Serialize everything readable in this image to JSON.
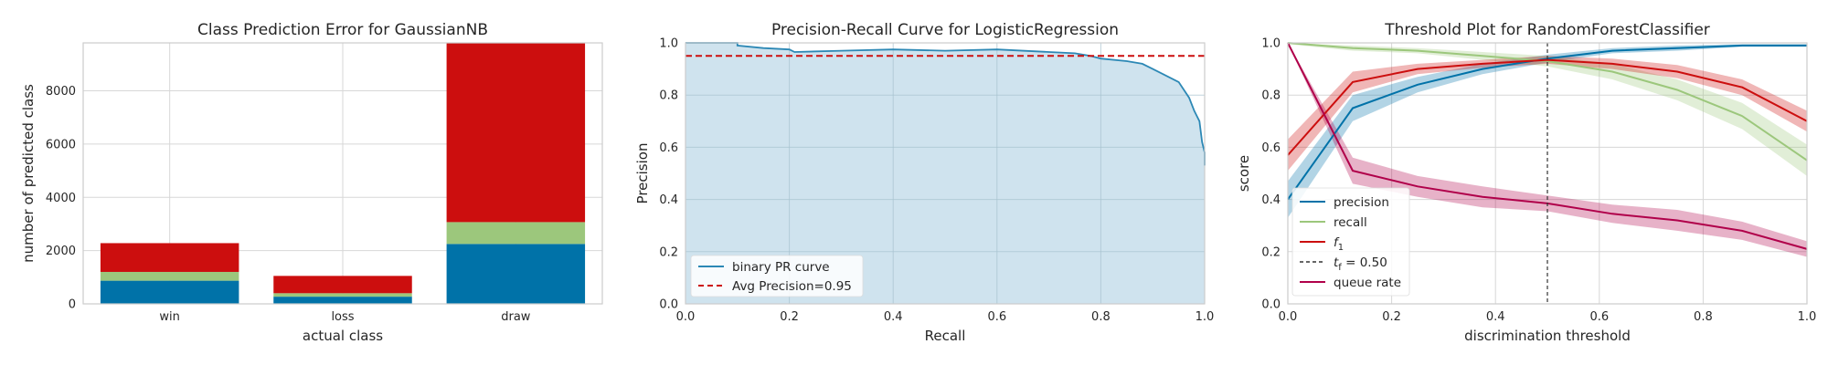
{
  "colors": {
    "blue": "#0072a8",
    "green": "#9cc77c",
    "red": "#cc0e0e",
    "crimson": "#b0004a",
    "pr_fill": "#cfe3ee",
    "pr_line": "#2c88b5",
    "grid": "#d7d7d7",
    "pr_grid": "#a7c2cf"
  },
  "chart_data": [
    {
      "type": "bar",
      "stacked": true,
      "title": "Class Prediction Error for GaussianNB",
      "xlabel": "actual class",
      "ylabel": "number of predicted class",
      "categories": [
        "win",
        "loss",
        "draw"
      ],
      "series": [
        {
          "color": "blue",
          "values": [
            870,
            270,
            2250
          ]
        },
        {
          "color": "green",
          "values": [
            330,
            130,
            820
          ]
        },
        {
          "color": "red",
          "values": [
            1080,
            650,
            6730
          ]
        }
      ],
      "ylim": [
        0,
        9800
      ],
      "yticks": [
        0,
        2000,
        4000,
        6000,
        8000
      ],
      "grid": true
    },
    {
      "type": "area",
      "title": "Precision-Recall Curve for LogisticRegression",
      "xlabel": "Recall",
      "ylabel": "Precision",
      "xlim": [
        0,
        1
      ],
      "ylim": [
        0,
        1
      ],
      "xticks": [
        "0.0",
        "0.2",
        "0.4",
        "0.6",
        "0.8",
        "1.0"
      ],
      "yticks": [
        "0.0",
        "0.2",
        "0.4",
        "0.6",
        "0.8",
        "1.0"
      ],
      "series": [
        {
          "name": "binary PR curve",
          "x": [
            0,
            0.1,
            0.1,
            0.15,
            0.2,
            0.21,
            0.3,
            0.4,
            0.5,
            0.6,
            0.7,
            0.75,
            0.78,
            0.8,
            0.85,
            0.88,
            0.9,
            0.92,
            0.95,
            0.96,
            0.97,
            0.98,
            0.99,
            0.995,
            1.0,
            1.0
          ],
          "y": [
            1.0,
            1.0,
            0.99,
            0.98,
            0.975,
            0.965,
            0.97,
            0.975,
            0.97,
            0.975,
            0.965,
            0.96,
            0.95,
            0.94,
            0.93,
            0.92,
            0.9,
            0.88,
            0.85,
            0.82,
            0.79,
            0.74,
            0.7,
            0.62,
            0.58,
            0.53
          ]
        }
      ],
      "reference_line": {
        "name": "Avg Precision=0.95",
        "y": 0.95
      },
      "legend": [
        "binary PR curve",
        "Avg Precision=0.95"
      ],
      "legend_position": "lower-left",
      "grid": true
    },
    {
      "type": "line",
      "title": "Threshold Plot for RandomForestClassifier",
      "xlabel": "discrimination threshold",
      "ylabel": "score",
      "xlim": [
        0,
        1
      ],
      "ylim": [
        0,
        1
      ],
      "xticks": [
        "0.0",
        "0.2",
        "0.4",
        "0.6",
        "0.8",
        "1.0"
      ],
      "yticks": [
        "0.0",
        "0.2",
        "0.4",
        "0.6",
        "0.8",
        "1.0"
      ],
      "x": [
        0,
        0.125,
        0.25,
        0.375,
        0.5,
        0.625,
        0.75,
        0.875,
        1.0
      ],
      "series": [
        {
          "name": "precision",
          "color": "blue",
          "values": [
            0.4,
            0.75,
            0.84,
            0.9,
            0.94,
            0.97,
            0.98,
            0.99,
            0.99
          ],
          "band": [
            0.07,
            0.05,
            0.03,
            0.02,
            0.015,
            0.01,
            0.01,
            0.005,
            0.005
          ]
        },
        {
          "name": "recall",
          "color": "green",
          "values": [
            1.0,
            0.98,
            0.97,
            0.95,
            0.93,
            0.89,
            0.82,
            0.72,
            0.55
          ],
          "band": [
            0.005,
            0.01,
            0.01,
            0.015,
            0.02,
            0.03,
            0.04,
            0.05,
            0.06
          ]
        },
        {
          "name": "f_1",
          "color": "red",
          "values": [
            0.57,
            0.85,
            0.9,
            0.92,
            0.935,
            0.92,
            0.89,
            0.83,
            0.7
          ],
          "band": [
            0.06,
            0.04,
            0.02,
            0.015,
            0.015,
            0.02,
            0.025,
            0.03,
            0.04
          ]
        },
        {
          "name": "queue rate",
          "color": "crimson",
          "values": [
            1.0,
            0.51,
            0.45,
            0.41,
            0.385,
            0.345,
            0.32,
            0.28,
            0.21
          ],
          "band": [
            0.0,
            0.05,
            0.04,
            0.04,
            0.03,
            0.035,
            0.04,
            0.035,
            0.03
          ]
        }
      ],
      "threshold": {
        "value": 0.5,
        "label_prefix": "t",
        "label_subscript": "f",
        "label_value": "= 0.50"
      },
      "legend": [
        {
          "main": "precision"
        },
        {
          "main": "recall"
        },
        {
          "main": "f",
          "sub": "1"
        },
        {
          "main": "t",
          "sub": "f",
          "tail": " = 0.50"
        },
        {
          "main": "queue rate"
        }
      ],
      "legend_position": "lower-left",
      "grid": true
    }
  ]
}
